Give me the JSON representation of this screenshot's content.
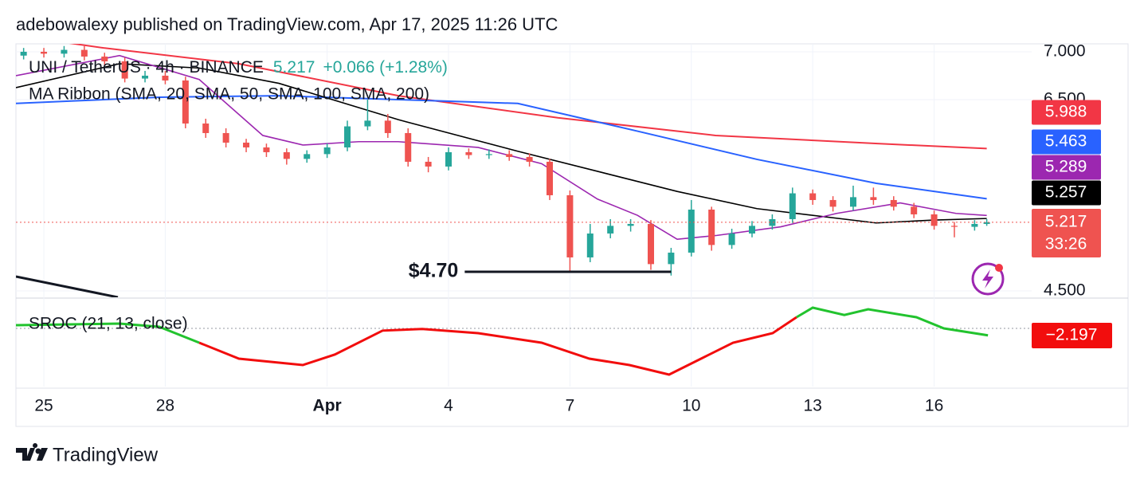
{
  "header": "adebowalexy published on TradingView.com, Apr 17, 2025 11:26 UTC",
  "footer": "TradingView",
  "chart_data": {
    "type": "candlestick",
    "symbol": "UNI / TetherUS · 4h · BINANCE",
    "price": "5.217",
    "change": "+0.066 (+1.28%)",
    "indicator": "MA Ribbon (SMA, 20, SMA, 50, SMA, 100, SMA, 200)",
    "countdown": "33:26",
    "up_color": "#26a69a",
    "down_color": "#ef5350",
    "xlim": [
      -0.69,
      24.41
    ],
    "xticks": [
      {
        "value": 0,
        "label": "25"
      },
      {
        "value": 3,
        "label": "28"
      },
      {
        "value": 7,
        "label": "Apr"
      },
      {
        "value": 10,
        "label": "4"
      },
      {
        "value": 13,
        "label": "7"
      },
      {
        "value": 16,
        "label": "10"
      },
      {
        "value": 19,
        "label": "13"
      },
      {
        "value": 22,
        "label": "16"
      }
    ],
    "ylim": [
      4.433,
      7.083
    ],
    "yticks": [
      {
        "value": 4.5,
        "label": "4.500"
      },
      {
        "value": 6.5,
        "label": "6.500"
      },
      {
        "value": 7.0,
        "label": "7.000"
      }
    ],
    "grid": true,
    "x": [
      -0.5,
      0,
      0.5,
      1,
      1.5,
      2,
      2.5,
      3,
      3.5,
      4,
      4.5,
      5,
      5.5,
      6,
      6.5,
      7,
      7.5,
      8,
      8.5,
      9,
      9.5,
      10,
      10.5,
      11,
      11.5,
      12,
      12.5,
      13,
      13.5,
      14,
      14.5,
      15,
      15.5,
      16,
      16.5,
      17,
      17.5,
      18,
      18.5,
      19,
      19.5,
      20,
      20.5,
      21,
      21.5,
      22,
      22.5,
      23,
      23.3
    ],
    "open": [
      6.96,
      7.0,
      6.98,
      7.02,
      6.95,
      6.9,
      6.72,
      6.75,
      6.7,
      6.25,
      6.15,
      6.05,
      6.0,
      5.95,
      5.88,
      5.93,
      6.0,
      6.22,
      6.28,
      6.15,
      5.85,
      5.8,
      5.95,
      5.92,
      5.93,
      5.9,
      5.85,
      5.5,
      4.85,
      5.1,
      5.18,
      5.2,
      4.78,
      4.9,
      5.35,
      4.98,
      5.1,
      5.18,
      5.25,
      5.52,
      5.45,
      5.38,
      5.48,
      5.45,
      5.38,
      5.3,
      5.18,
      5.17,
      5.2
    ],
    "high": [
      7.04,
      7.04,
      7.06,
      7.06,
      6.99,
      6.94,
      6.8,
      6.8,
      6.74,
      6.3,
      6.2,
      6.09,
      6.04,
      5.99,
      5.97,
      6.04,
      6.28,
      6.5,
      6.35,
      6.2,
      5.9,
      6.0,
      5.99,
      5.98,
      5.97,
      5.94,
      5.88,
      5.55,
      5.2,
      5.25,
      5.25,
      5.24,
      4.95,
      5.45,
      5.38,
      5.15,
      5.23,
      5.3,
      5.58,
      5.56,
      5.49,
      5.6,
      5.58,
      5.49,
      5.42,
      5.34,
      5.22,
      5.24,
      5.25
    ],
    "low": [
      6.92,
      6.94,
      6.94,
      6.91,
      6.86,
      6.68,
      6.68,
      6.66,
      6.2,
      6.1,
      6.0,
      5.95,
      5.9,
      5.82,
      5.84,
      5.89,
      5.96,
      6.18,
      6.1,
      5.8,
      5.74,
      5.76,
      5.88,
      5.88,
      5.86,
      5.8,
      5.45,
      4.7,
      4.8,
      5.05,
      5.12,
      4.72,
      4.66,
      4.86,
      4.92,
      4.94,
      5.06,
      5.14,
      5.21,
      5.4,
      5.33,
      5.34,
      5.4,
      5.34,
      5.26,
      5.14,
      5.06,
      5.13,
      5.18
    ],
    "close": [
      7.0,
      6.98,
      7.02,
      6.95,
      6.9,
      6.72,
      6.75,
      6.7,
      6.25,
      6.15,
      6.05,
      6.0,
      5.95,
      5.88,
      5.93,
      6.0,
      6.22,
      6.28,
      6.15,
      5.85,
      5.8,
      5.95,
      5.92,
      5.93,
      5.9,
      5.85,
      5.5,
      4.85,
      5.1,
      5.18,
      5.2,
      4.78,
      4.9,
      5.35,
      4.98,
      5.1,
      5.18,
      5.25,
      5.52,
      5.45,
      5.38,
      5.48,
      5.45,
      5.38,
      5.3,
      5.18,
      5.17,
      5.2,
      5.217
    ],
    "series": [
      {
        "name": "SMA 200",
        "color": "#f23645",
        "last": 5.988,
        "x": [
          -0.69,
          1.48,
          4.82,
          8.76,
          12.7,
          16.6,
          20.6,
          23.3
        ],
        "values": [
          7.17,
          7.04,
          6.875,
          6.54,
          6.31,
          6.125,
          6.04,
          5.988
        ]
      },
      {
        "name": "SMA 100",
        "color": "#2962ff",
        "last": 5.463,
        "x": [
          -0.69,
          2.85,
          5.81,
          8.76,
          11.71,
          14.67,
          17.62,
          20.57,
          23.3
        ],
        "values": [
          6.46,
          6.525,
          6.54,
          6.5,
          6.46,
          6.17,
          5.875,
          5.625,
          5.463
        ]
      },
      {
        "name": "SMA 50",
        "color": "#000000",
        "last": 5.257,
        "x": [
          -0.69,
          1.87,
          3.84,
          5.81,
          8.76,
          11.71,
          13.68,
          15.65,
          17.62,
          20.57,
          21.95,
          23.3
        ],
        "values": [
          6.625,
          6.875,
          6.83,
          6.67,
          6.29,
          5.96,
          5.75,
          5.54,
          5.36,
          5.21,
          5.24,
          5.257
        ]
      },
      {
        "name": "SMA 20",
        "color": "#9c27b0",
        "last": 5.289,
        "x": [
          -0.69,
          1.87,
          3.84,
          5.41,
          6.4,
          7.78,
          8.76,
          10.73,
          12.3,
          13.68,
          14.67,
          15.65,
          16.63,
          18.21,
          19.59,
          21.16,
          22.54,
          23.3
        ],
        "values": [
          6.75,
          6.96,
          6.71,
          6.125,
          6.025,
          6.06,
          6.06,
          6.0,
          5.83,
          5.46,
          5.29,
          5.04,
          5.08,
          5.17,
          5.31,
          5.42,
          5.31,
          5.289
        ]
      }
    ],
    "annotation": {
      "text": "$4.70",
      "value": 4.7,
      "x": [
        10.4,
        15.5
      ]
    },
    "sroc": {
      "title": "SROC (21, 13, close)",
      "ylim": [
        -18.25,
        9.25
      ],
      "up_color": "#22c32e",
      "down_color": "#f20d0d",
      "last": {
        "value": -2.197,
        "label": "−2.197"
      },
      "x": [
        -0.69,
        1.87,
        2.85,
        3.84,
        4.82,
        6.4,
        7.19,
        8.37,
        9.35,
        10.73,
        12.3,
        13.48,
        14.47,
        15.45,
        16.24,
        17.03,
        18.01,
        18.6,
        19.0,
        19.78,
        20.37,
        21.56,
        22.24,
        23.33
      ],
      "values": [
        1,
        1.5,
        0.5,
        -4.5,
        -9.5,
        -11.5,
        -8.2,
        -0.7,
        -0.2,
        -1.5,
        -4.5,
        -9.5,
        -11.5,
        -14.5,
        -9.5,
        -4.5,
        -1.5,
        3.5,
        6.5,
        4.2,
        6,
        3.5,
        0,
        -2.197
      ]
    }
  }
}
